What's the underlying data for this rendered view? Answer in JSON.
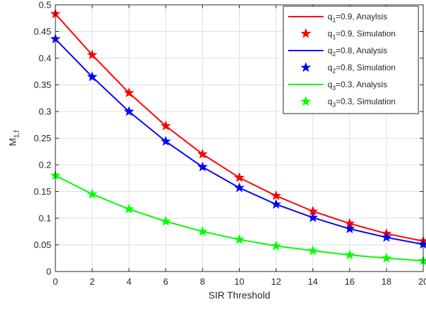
{
  "chart_data": {
    "type": "line",
    "title": "",
    "xlabel": "SIR Threshold",
    "ylabel": {
      "main": "M",
      "sub": "1,f"
    },
    "xlim": [
      0,
      20
    ],
    "ylim": [
      0,
      0.5
    ],
    "xticks": [
      "0",
      "2",
      "4",
      "6",
      "8",
      "10",
      "12",
      "14",
      "16",
      "18",
      "20"
    ],
    "yticks": [
      "0",
      "0.05",
      "0.1",
      "0.15",
      "0.2",
      "0.25",
      "0.3",
      "0.35",
      "0.4",
      "0.45",
      "0.5"
    ],
    "grid": true,
    "legend_position": "top-right",
    "x": [
      0,
      2,
      4,
      6,
      8,
      10,
      12,
      14,
      16,
      18,
      20
    ],
    "series": [
      {
        "legend": {
          "q": "q",
          "sub": "1",
          "rest": "=0.9, Anaylsis"
        },
        "style": "line",
        "color": "#ff0000",
        "values": [
          0.483,
          0.406,
          0.335,
          0.273,
          0.22,
          0.176,
          0.142,
          0.113,
          0.09,
          0.071,
          0.057
        ]
      },
      {
        "legend": {
          "q": "q",
          "sub": "1",
          "rest": "=0.9, Simulation"
        },
        "style": "marker",
        "color": "#ff0000",
        "values": [
          0.483,
          0.406,
          0.335,
          0.273,
          0.22,
          0.176,
          0.142,
          0.113,
          0.09,
          0.071,
          0.057
        ]
      },
      {
        "legend": {
          "q": "q",
          "sub": "2",
          "rest": "=0.8, Analysis"
        },
        "style": "line",
        "color": "#0000ff",
        "values": [
          0.436,
          0.365,
          0.3,
          0.244,
          0.196,
          0.157,
          0.126,
          0.101,
          0.08,
          0.064,
          0.051
        ]
      },
      {
        "legend": {
          "q": "q",
          "sub": "2",
          "rest": "=0.8, Simulation"
        },
        "style": "marker",
        "color": "#0000ff",
        "values": [
          0.436,
          0.365,
          0.3,
          0.244,
          0.196,
          0.157,
          0.126,
          0.101,
          0.08,
          0.064,
          0.051
        ]
      },
      {
        "legend": {
          "q": "q",
          "sub": "3",
          "rest": "=0.3, Analysis"
        },
        "style": "line",
        "color": "#00ff00",
        "values": [
          0.18,
          0.145,
          0.117,
          0.094,
          0.075,
          0.06,
          0.048,
          0.039,
          0.031,
          0.025,
          0.02
        ]
      },
      {
        "legend": {
          "q": "q",
          "sub": "3",
          "rest": "=0.3, Simulation"
        },
        "style": "marker",
        "color": "#00ff00",
        "values": [
          0.18,
          0.145,
          0.117,
          0.094,
          0.075,
          0.06,
          0.048,
          0.039,
          0.031,
          0.025,
          0.02
        ]
      }
    ]
  }
}
